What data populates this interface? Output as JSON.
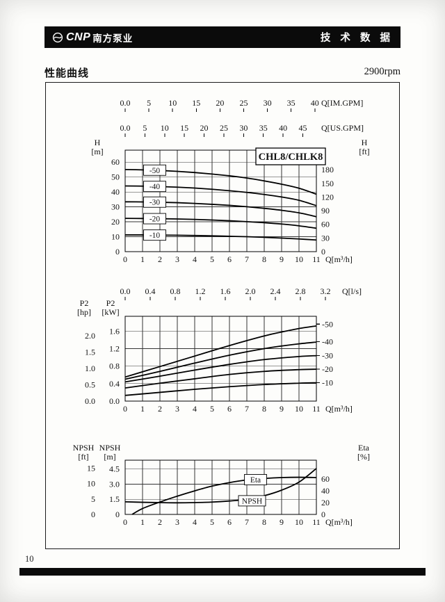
{
  "page": {
    "number": "10"
  },
  "header": {
    "brand": "CNP",
    "brand_cn": "南方泵业",
    "title": "技 术 数 据"
  },
  "section": {
    "title": "性能曲线",
    "speed": "2900rpm"
  },
  "chart_data": [
    {
      "type": "line",
      "name": "head-vs-flow",
      "model_label": "CHL8/CHLK8",
      "x_unit": "Q[m³/h]",
      "x_max": 11,
      "x_ticks": [
        "0",
        "1",
        "2",
        "3",
        "4",
        "5",
        "6",
        "7",
        "8",
        "9",
        "10",
        "11"
      ],
      "top_axes": [
        {
          "unit": "Q[IM.GPM]",
          "to_m3h": 0.27277,
          "ticks": [
            "0.0",
            "5",
            "10",
            "15",
            "20",
            "25",
            "30",
            "35",
            "40"
          ]
        },
        {
          "unit": "Q[US.GPM]",
          "to_m3h": 0.22712,
          "ticks": [
            "0.0",
            "5",
            "10",
            "15",
            "20",
            "25",
            "30",
            "35",
            "40",
            "45"
          ]
        }
      ],
      "y_left": {
        "title": [
          "H",
          "[m]"
        ],
        "to_primary": 1,
        "ticks": [
          "0",
          "10",
          "20",
          "30",
          "40",
          "50",
          "60"
        ]
      },
      "y_right": {
        "title": [
          "H",
          "[ft]"
        ],
        "to_primary": 0.3048,
        "ticks": [
          "0",
          "30",
          "60",
          "90",
          "120",
          "150",
          "180"
        ]
      },
      "ylim": [
        0,
        68
      ],
      "series": [
        {
          "label": "-50",
          "points": [
            [
              0,
              55
            ],
            [
              1,
              54.8
            ],
            [
              2,
              54.4
            ],
            [
              3,
              53.8
            ],
            [
              4,
              53
            ],
            [
              5,
              52
            ],
            [
              6,
              50.8
            ],
            [
              7,
              49.3
            ],
            [
              8,
              47.4
            ],
            [
              9,
              45.2
            ],
            [
              10,
              42.5
            ],
            [
              11,
              38.5
            ]
          ]
        },
        {
          "label": "-40",
          "points": [
            [
              0,
              44
            ],
            [
              1,
              43.9
            ],
            [
              2,
              43.6
            ],
            [
              3,
              43.2
            ],
            [
              4,
              42.6
            ],
            [
              5,
              41.8
            ],
            [
              6,
              40.8
            ],
            [
              7,
              39.7
            ],
            [
              8,
              38.3
            ],
            [
              9,
              36.6
            ],
            [
              10,
              34.4
            ],
            [
              11,
              30.8
            ]
          ]
        },
        {
          "label": "-30",
          "points": [
            [
              0,
              33.4
            ],
            [
              1,
              33.3
            ],
            [
              2,
              33.1
            ],
            [
              3,
              32.8
            ],
            [
              4,
              32.3
            ],
            [
              5,
              31.7
            ],
            [
              6,
              31
            ],
            [
              7,
              30.1
            ],
            [
              8,
              29
            ],
            [
              9,
              27.7
            ],
            [
              10,
              26
            ],
            [
              11,
              23.4
            ]
          ]
        },
        {
          "label": "-20",
          "points": [
            [
              0,
              22.3
            ],
            [
              1,
              22.2
            ],
            [
              2,
              22.1
            ],
            [
              3,
              21.9
            ],
            [
              4,
              21.6
            ],
            [
              5,
              21.2
            ],
            [
              6,
              20.7
            ],
            [
              7,
              20.1
            ],
            [
              8,
              19.4
            ],
            [
              9,
              18.5
            ],
            [
              10,
              17.3
            ],
            [
              11,
              15.7
            ]
          ]
        },
        {
          "label": "-10",
          "points": [
            [
              0,
              11.2
            ],
            [
              1,
              11.2
            ],
            [
              2,
              11.1
            ],
            [
              3,
              11
            ],
            [
              4,
              10.8
            ],
            [
              5,
              10.6
            ],
            [
              6,
              10.3
            ],
            [
              7,
              10
            ],
            [
              8,
              9.6
            ],
            [
              9,
              9.1
            ],
            [
              10,
              8.5
            ],
            [
              11,
              7.8
            ]
          ]
        }
      ],
      "curve_labels": [
        {
          "text": "-50",
          "x": 1.7,
          "y": 54.6,
          "box": true
        },
        {
          "text": "-40",
          "x": 1.7,
          "y": 43.7,
          "box": true
        },
        {
          "text": "-30",
          "x": 1.7,
          "y": 33.2,
          "box": true
        },
        {
          "text": "-20",
          "x": 1.7,
          "y": 22.1,
          "box": true
        },
        {
          "text": "-10",
          "x": 1.7,
          "y": 11.1,
          "box": true
        }
      ]
    },
    {
      "type": "line",
      "name": "power-vs-flow",
      "x_unit": "Q[m³/h]",
      "x_max": 11,
      "x_ticks": [
        "0",
        "1",
        "2",
        "3",
        "4",
        "5",
        "6",
        "7",
        "8",
        "9",
        "10",
        "11"
      ],
      "top_axes": [
        {
          "unit": "Q[l/s]",
          "to_m3h": 3.6,
          "ticks": [
            "0.0",
            "0.4",
            "0.8",
            "1.2",
            "1.6",
            "2.0",
            "2.4",
            "2.8",
            "3.2"
          ]
        }
      ],
      "y_left_outer": {
        "title": [
          "P2",
          "[hp]"
        ],
        "to_primary": 0.7457,
        "ticks": [
          "0.0",
          "0.5",
          "1.0",
          "1.5",
          "2.0"
        ]
      },
      "y_left": {
        "title": [
          "P2",
          "[kW]"
        ],
        "to_primary": 1,
        "ticks": [
          "0.0",
          "0.4",
          "0.8",
          "1.2",
          "1.6"
        ]
      },
      "ylim": [
        0,
        1.94
      ],
      "series": [
        {
          "label": "-50",
          "points": [
            [
              0,
              0.55
            ],
            [
              2,
              0.79
            ],
            [
              4,
              1.03
            ],
            [
              6,
              1.27
            ],
            [
              8,
              1.49
            ],
            [
              9,
              1.58
            ],
            [
              10,
              1.66
            ],
            [
              11,
              1.72
            ]
          ]
        },
        {
          "label": "-40",
          "points": [
            [
              0,
              0.5
            ],
            [
              2,
              0.68
            ],
            [
              4,
              0.87
            ],
            [
              6,
              1.05
            ],
            [
              8,
              1.2
            ],
            [
              9,
              1.26
            ],
            [
              10,
              1.31
            ],
            [
              11,
              1.35
            ]
          ]
        },
        {
          "label": "-30",
          "points": [
            [
              0,
              0.44
            ],
            [
              2,
              0.57
            ],
            [
              4,
              0.71
            ],
            [
              6,
              0.84
            ],
            [
              8,
              0.95
            ],
            [
              10,
              1.02
            ],
            [
              11,
              1.04
            ]
          ]
        },
        {
          "label": "-20",
          "points": [
            [
              0,
              0.3
            ],
            [
              2,
              0.41
            ],
            [
              4,
              0.51
            ],
            [
              6,
              0.61
            ],
            [
              8,
              0.68
            ],
            [
              10,
              0.72
            ],
            [
              11,
              0.73
            ]
          ]
        },
        {
          "label": "-10",
          "points": [
            [
              0,
              0.13
            ],
            [
              2,
              0.2
            ],
            [
              4,
              0.27
            ],
            [
              6,
              0.33
            ],
            [
              8,
              0.38
            ],
            [
              10,
              0.41
            ],
            [
              11,
              0.42
            ]
          ]
        }
      ],
      "curve_labels": [
        {
          "text": "-50",
          "y": 1.76,
          "right": true
        },
        {
          "text": "-40",
          "y": 1.36,
          "right": true
        },
        {
          "text": "-30",
          "y": 1.04,
          "right": true
        },
        {
          "text": "-20",
          "y": 0.73,
          "right": true
        },
        {
          "text": "-10",
          "y": 0.42,
          "right": true
        }
      ]
    },
    {
      "type": "line",
      "name": "npsh-eta-vs-flow",
      "x_unit": "Q[m³/h]",
      "x_max": 11,
      "x_ticks": [
        "0",
        "1",
        "2",
        "3",
        "4",
        "5",
        "6",
        "7",
        "8",
        "9",
        "10",
        "11"
      ],
      "top_axes": [],
      "y_left_outer": {
        "title": [
          "NPSH",
          "[ft]"
        ],
        "to_primary": 0.3048,
        "ticks": [
          "0",
          "5",
          "10",
          "15"
        ]
      },
      "y_left": {
        "title": [
          "NPSH",
          "[m]"
        ],
        "to_primary": 1,
        "ticks": [
          "0",
          "1.5",
          "3.0",
          "4.5"
        ]
      },
      "y_right": {
        "title": [
          "Eta",
          "[%]"
        ],
        "scale": "eta",
        "ticks": [
          "0",
          "20",
          "40",
          "60"
        ]
      },
      "ylim": [
        0,
        5.37
      ],
      "eta_lim": [
        0,
        92
      ],
      "series": [
        {
          "label": "Eta",
          "unit": "eta",
          "points": [
            [
              0.4,
              0
            ],
            [
              1,
              10
            ],
            [
              2,
              21
            ],
            [
              3,
              31
            ],
            [
              4,
              40
            ],
            [
              5,
              48
            ],
            [
              6,
              54
            ],
            [
              7,
              58.5
            ],
            [
              8,
              61
            ],
            [
              9,
              62.5
            ],
            [
              10,
              63
            ],
            [
              11,
              62.5
            ]
          ]
        },
        {
          "label": "NPSH",
          "unit": "m",
          "points": [
            [
              0,
              1.25
            ],
            [
              1,
              1.2
            ],
            [
              2,
              1.17
            ],
            [
              3,
              1.15
            ],
            [
              4,
              1.17
            ],
            [
              5,
              1.22
            ],
            [
              6,
              1.33
            ],
            [
              7,
              1.5
            ],
            [
              8,
              1.85
            ],
            [
              9,
              2.4
            ],
            [
              10,
              3.2
            ],
            [
              11,
              4.55
            ]
          ]
        }
      ],
      "curve_labels": [
        {
          "text": "Eta",
          "x": 7.5,
          "y": 59,
          "box": true,
          "unit": "eta"
        },
        {
          "text": "NPSH",
          "x": 7.3,
          "y": 1.35,
          "box": true
        }
      ]
    }
  ]
}
